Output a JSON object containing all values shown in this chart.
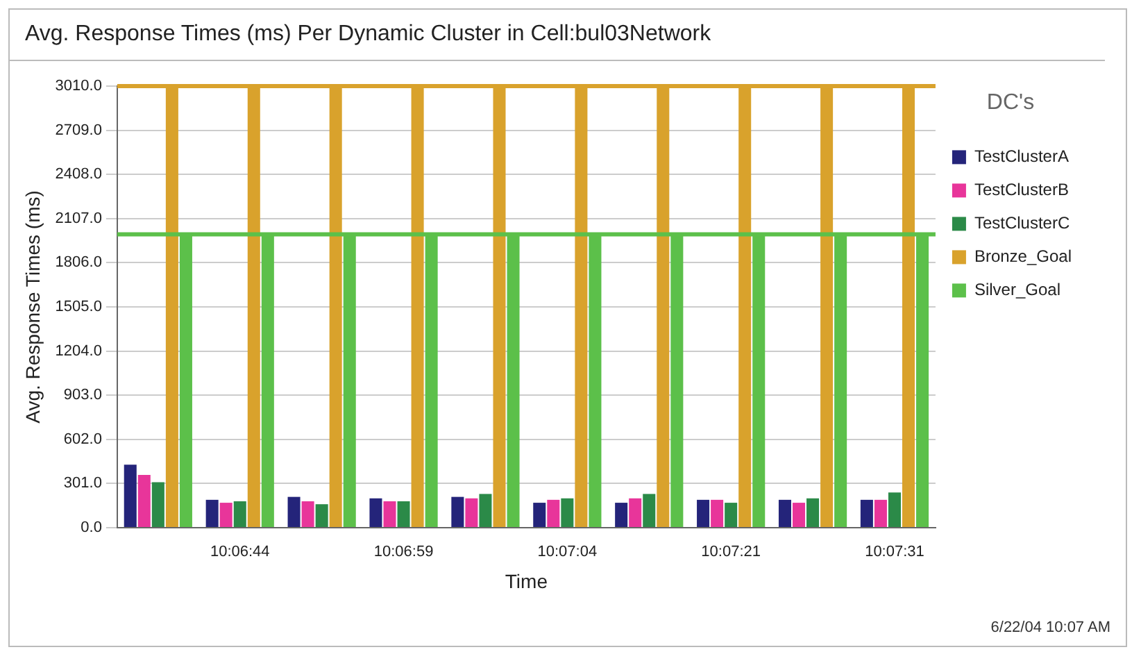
{
  "chart_data": {
    "type": "bar",
    "title": "Avg. Response Times (ms) Per Dynamic Cluster in Cell:bul03Network",
    "xlabel": "Time",
    "ylabel": "Avg. Response Times (ms)",
    "legend_title": "DC's",
    "categories": [
      null,
      "10:06:44",
      null,
      "10:06:59",
      null,
      "10:07:04",
      null,
      "10:07:21",
      null,
      "10:07:31"
    ],
    "series": [
      {
        "name": "TestClusterA",
        "color": "#24247a",
        "values": [
          430,
          190,
          210,
          200,
          210,
          170,
          170,
          190,
          190,
          190
        ]
      },
      {
        "name": "TestClusterB",
        "color": "#e8359a",
        "values": [
          360,
          170,
          180,
          180,
          200,
          190,
          200,
          190,
          170,
          190
        ]
      },
      {
        "name": "TestClusterC",
        "color": "#2b8a48",
        "values": [
          310,
          180,
          160,
          180,
          230,
          200,
          230,
          170,
          200,
          240
        ]
      },
      {
        "name": "Bronze_Goal",
        "color": "#d9a22c",
        "values": [
          3010,
          3010,
          3010,
          3010,
          3010,
          3010,
          3010,
          3010,
          3010,
          3010
        ]
      },
      {
        "name": "Silver_Goal",
        "color": "#5cc04a",
        "values": [
          2000,
          2000,
          2000,
          2000,
          2000,
          2000,
          2000,
          2000,
          2000,
          2000
        ]
      }
    ],
    "ylim": [
      0,
      3010
    ],
    "yticks": [
      {
        "value": 0,
        "label": "0.0"
      },
      {
        "value": 301,
        "label": "301.0"
      },
      {
        "value": 602,
        "label": "602.0"
      },
      {
        "value": 903,
        "label": "903.0"
      },
      {
        "value": 1204,
        "label": "1204.0"
      },
      {
        "value": 1505,
        "label": "1505.0"
      },
      {
        "value": 1806,
        "label": "1806.0"
      },
      {
        "value": 2107,
        "label": "2107.0"
      },
      {
        "value": 2408,
        "label": "2408.0"
      },
      {
        "value": 2709,
        "label": "2709.0"
      },
      {
        "value": 3010,
        "label": "3010.0"
      }
    ],
    "ref_lines": [
      {
        "axis": "y",
        "value": 3010,
        "color": "#d9a22c"
      },
      {
        "axis": "y",
        "value": 2000,
        "color": "#5cc04a"
      }
    ],
    "grid": "y",
    "legend": "right",
    "annotations": [
      "6/22/04 10:07 AM"
    ]
  }
}
